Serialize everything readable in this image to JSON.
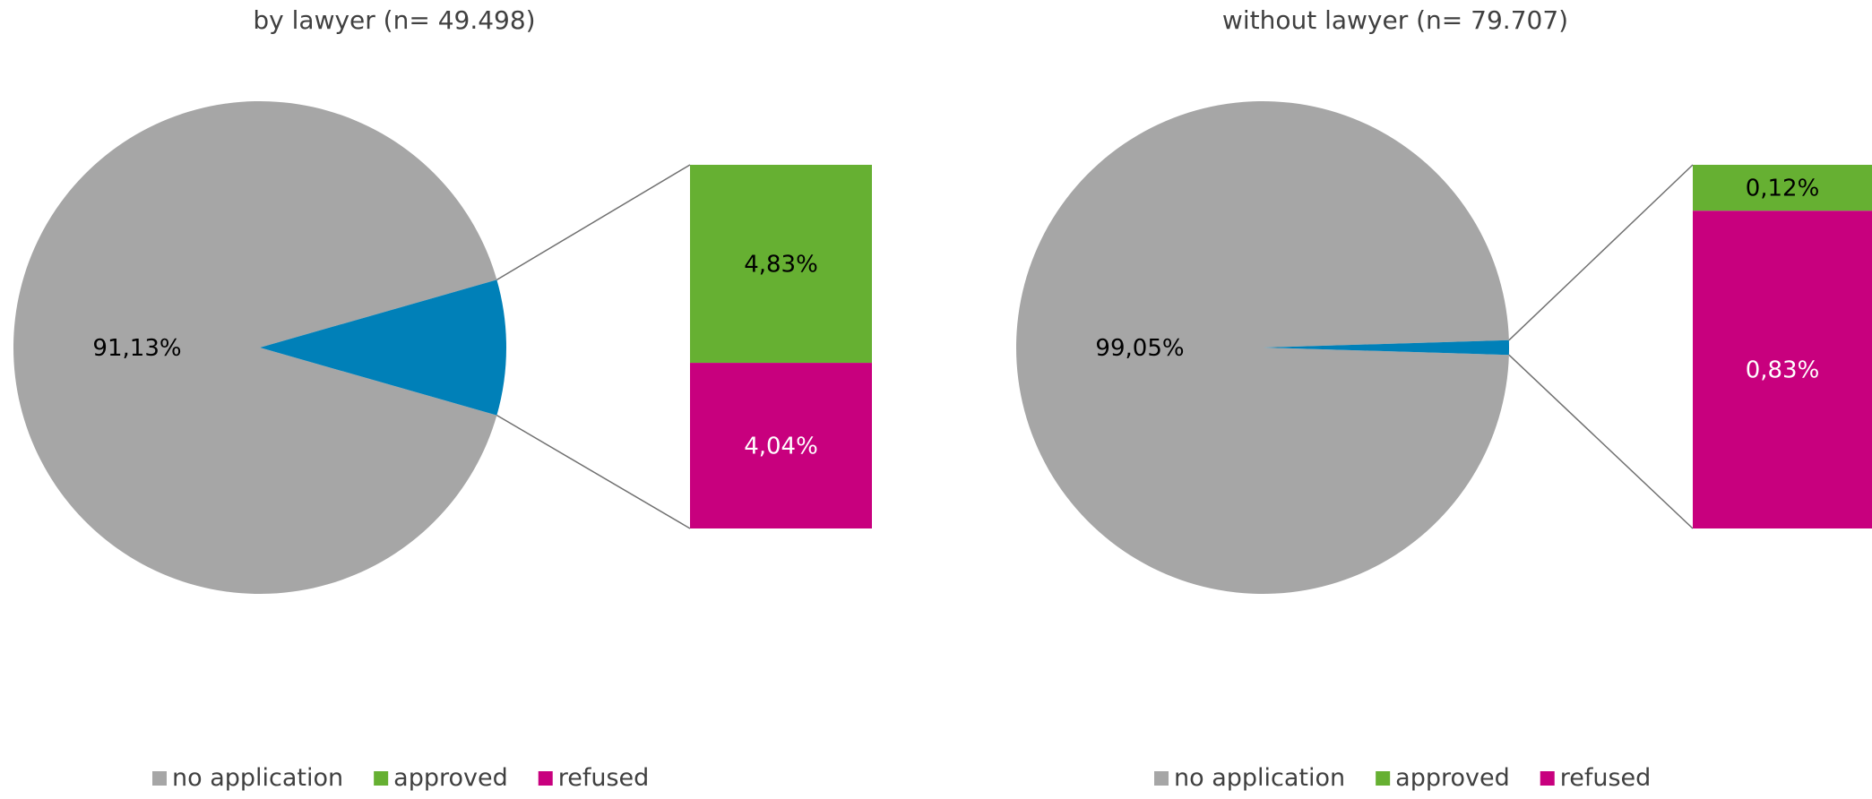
{
  "chart_data": [
    {
      "type": "pie",
      "title": "by lawyer (n= 49.498)",
      "slices": [
        {
          "name": "no application",
          "value": 91.13,
          "label": "91,13%"
        },
        {
          "name": "application",
          "value": 8.87
        }
      ],
      "breakout": [
        {
          "name": "approved",
          "value": 4.83,
          "label": "4,83%"
        },
        {
          "name": "refused",
          "value": 4.04,
          "label": "4,04%"
        }
      ],
      "legend": {
        "placement": "bottom",
        "items": [
          {
            "name": "no application",
            "color": "#A6A6A6"
          },
          {
            "name": "approved",
            "color": "#66B032"
          },
          {
            "name": "refused",
            "color": "#C8007E"
          }
        ]
      }
    },
    {
      "type": "pie",
      "title": "without lawyer (n= 79.707)",
      "slices": [
        {
          "name": "no application",
          "value": 99.05,
          "label": "99,05%"
        },
        {
          "name": "application",
          "value": 0.95
        }
      ],
      "breakout": [
        {
          "name": "approved",
          "value": 0.12,
          "label": "0,12%"
        },
        {
          "name": "refused",
          "value": 0.83,
          "label": "0,83%"
        }
      ],
      "legend": {
        "placement": "bottom",
        "items": [
          {
            "name": "no application",
            "color": "#A6A6A6"
          },
          {
            "name": "approved",
            "color": "#66B032"
          },
          {
            "name": "refused",
            "color": "#C8007E"
          }
        ]
      }
    }
  ],
  "colors": {
    "no_application": "#A6A6A6",
    "application": "#0080B8",
    "approved": "#66B032",
    "refused": "#C8007E",
    "connector": "#707070",
    "text_dark": "#000000",
    "text_light": "#ffffff",
    "title_text": "#404040"
  }
}
